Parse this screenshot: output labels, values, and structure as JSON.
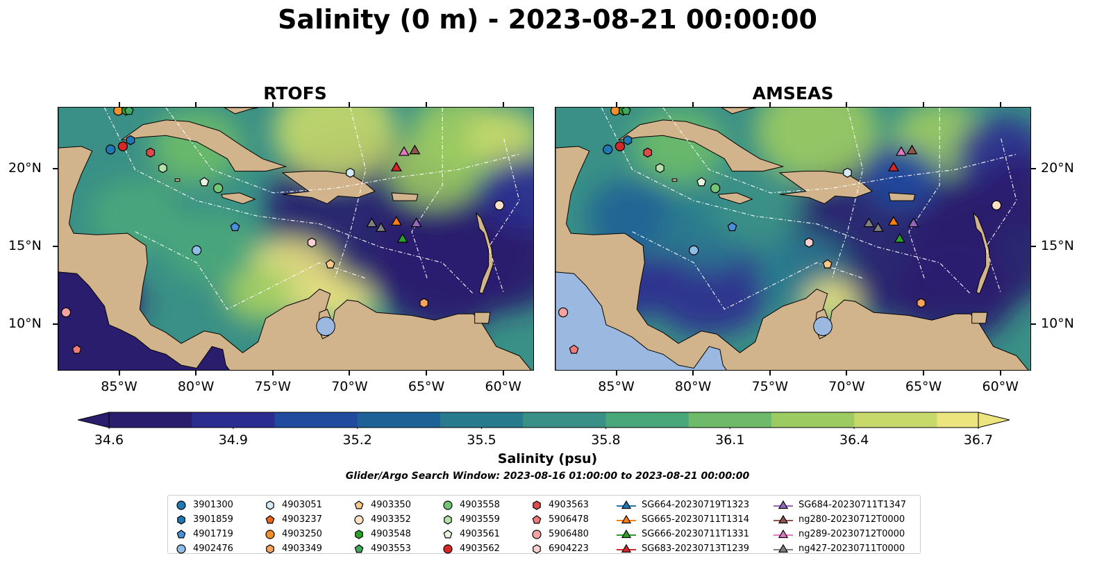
{
  "figure": {
    "title": "Salinity (0 m) - 2023-08-21 00:00:00",
    "search_window": "Glider/Argo Search Window: 2023-08-16 01:00:00 to 2023-08-21 00:00:00"
  },
  "chart_data": {
    "type": "map",
    "panels": [
      {
        "title": "RTOFS",
        "model": "RTOFS"
      },
      {
        "title": "AMSEAS",
        "model": "AMSEAS"
      }
    ],
    "lon_range": [
      -89,
      -58
    ],
    "lat_range": [
      7,
      24
    ],
    "lon_ticks": [
      -85,
      -80,
      -75,
      -70,
      -65,
      -60
    ],
    "lon_tick_labels": [
      "85°W",
      "80°W",
      "75°W",
      "70°W",
      "65°W",
      "60°W"
    ],
    "lat_ticks": [
      10,
      15,
      20
    ],
    "lat_tick_labels": [
      "10°N",
      "15°N",
      "20°N"
    ],
    "colorbar": {
      "label": "Salinity (psu)",
      "min": 34.6,
      "max": 36.7,
      "ticks": [
        34.6,
        34.9,
        35.2,
        35.5,
        35.8,
        36.1,
        36.4,
        36.7
      ],
      "tick_labels": [
        "34.6",
        "34.9",
        "35.2",
        "35.5",
        "35.8",
        "36.1",
        "36.4",
        "36.7"
      ],
      "colormap": "haline",
      "extend": "both"
    },
    "argo_floats": [
      {
        "id": "3901300",
        "lon": -85.6,
        "lat": 21.3,
        "marker": "circle",
        "color": "#1f77b4"
      },
      {
        "id": "3901859",
        "lon": -84.3,
        "lat": 21.9,
        "marker": "hexagon",
        "color": "#1f77b4"
      },
      {
        "id": "4901719",
        "lon": -77.5,
        "lat": 16.3,
        "marker": "pentagon",
        "color": "#4a90d9"
      },
      {
        "id": "4902476",
        "lon": -80.0,
        "lat": 14.8,
        "marker": "circle",
        "color": "#8fbde6"
      },
      {
        "id": "4903051",
        "lon": -70.0,
        "lat": 19.8,
        "marker": "hexagon",
        "color": "#d4eaf7"
      },
      {
        "id": "4903237",
        "lon": -84.8,
        "lat": 23.9,
        "marker": "pentagon",
        "color": "#e8671c"
      },
      {
        "id": "4903250",
        "lon": -85.1,
        "lat": 23.8,
        "marker": "circle",
        "color": "#f28e2b"
      },
      {
        "id": "4903349",
        "lon": -65.2,
        "lat": 11.4,
        "marker": "hexagon",
        "color": "#f7a35c"
      },
      {
        "id": "4903350",
        "lon": -71.3,
        "lat": 13.9,
        "marker": "pentagon",
        "color": "#f9c98a"
      },
      {
        "id": "4903352",
        "lon": -60.3,
        "lat": 17.7,
        "marker": "circle",
        "color": "#fde0c5"
      },
      {
        "id": "4903548",
        "lon": -84.6,
        "lat": 23.8,
        "marker": "hexagon",
        "color": "#2ca02c"
      },
      {
        "id": "4903553",
        "lon": -84.4,
        "lat": 23.8,
        "marker": "pentagon",
        "color": "#41ab5d"
      },
      {
        "id": "4903558",
        "lon": -78.6,
        "lat": 18.8,
        "marker": "circle",
        "color": "#74c476"
      },
      {
        "id": "4903559",
        "lon": -82.2,
        "lat": 20.1,
        "marker": "hexagon",
        "color": "#b5e2a8"
      },
      {
        "id": "4903561",
        "lon": -79.5,
        "lat": 19.2,
        "marker": "pentagon",
        "color": "#e5f5e0"
      },
      {
        "id": "4903562",
        "lon": -84.8,
        "lat": 21.5,
        "marker": "circle",
        "color": "#d62728"
      },
      {
        "id": "4903563",
        "lon": -83.0,
        "lat": 21.1,
        "marker": "hexagon",
        "color": "#de4b4b"
      },
      {
        "id": "5906478",
        "lon": -87.8,
        "lat": 8.4,
        "marker": "pentagon",
        "color": "#f07b7b"
      },
      {
        "id": "5906480",
        "lon": -88.5,
        "lat": 10.8,
        "marker": "circle",
        "color": "#f4a3a3"
      },
      {
        "id": "6904223",
        "lon": -72.5,
        "lat": 15.3,
        "marker": "hexagon",
        "color": "#fbd0d0"
      }
    ],
    "gliders": [
      {
        "id": "SG664-20230719T1323",
        "lon": -68.6,
        "lat": 16.5,
        "color": "#1f77b4",
        "marker_color": "#7f7f7f"
      },
      {
        "id": "SG665-20230711T1314",
        "lon": -67.0,
        "lat": 16.6,
        "color": "#ff7f0e",
        "marker_color": "#ff7f0e"
      },
      {
        "id": "SG666-20230711T1331",
        "lon": -66.6,
        "lat": 15.5,
        "color": "#2ca02c",
        "marker_color": "#2ca02c"
      },
      {
        "id": "SG683-20230713T1239",
        "lon": -67.0,
        "lat": 20.1,
        "color": "#d62728",
        "marker_color": "#d62728"
      },
      {
        "id": "SG684-20230711T1347",
        "lon": -65.7,
        "lat": 16.5,
        "color": "#9467bd",
        "marker_color": "#9467bd"
      },
      {
        "id": "ng280-20230712T0000",
        "lon": -65.8,
        "lat": 21.2,
        "color": "#8c564b",
        "marker_color": "#8c564b"
      },
      {
        "id": "ng289-20230712T0000",
        "lon": -66.5,
        "lat": 21.1,
        "color": "#e377c2",
        "marker_color": "#e377c2"
      },
      {
        "id": "ng427-20230711T0000",
        "lon": -68.0,
        "lat": 16.2,
        "color": "#7f7f7f",
        "marker_color": "#7f7f7f"
      }
    ],
    "legend_columns": [
      [
        "3901300",
        "3901859",
        "4901719",
        "4902476"
      ],
      [
        "4903051",
        "4903237",
        "4903250",
        "4903349"
      ],
      [
        "4903350",
        "4903352",
        "4903548",
        "4903553"
      ],
      [
        "4903558",
        "4903559",
        "4903561",
        "4903562"
      ],
      [
        "4903563",
        "5906478",
        "5906480",
        "6904223"
      ],
      [
        "SG664-20230719T1323",
        "SG665-20230711T1314",
        "SG666-20230711T1331",
        "SG683-20230713T1239"
      ],
      [
        "SG684-20230711T1347",
        "ng280-20230712T0000",
        "ng289-20230712T0000",
        "ng427-20230711T0000"
      ]
    ],
    "colors": {
      "land": "#d2b48c",
      "pacific_mask": "#9ab8e0",
      "low_salinity": "#2a1d6e",
      "high_salinity": "#e8e27a"
    }
  }
}
